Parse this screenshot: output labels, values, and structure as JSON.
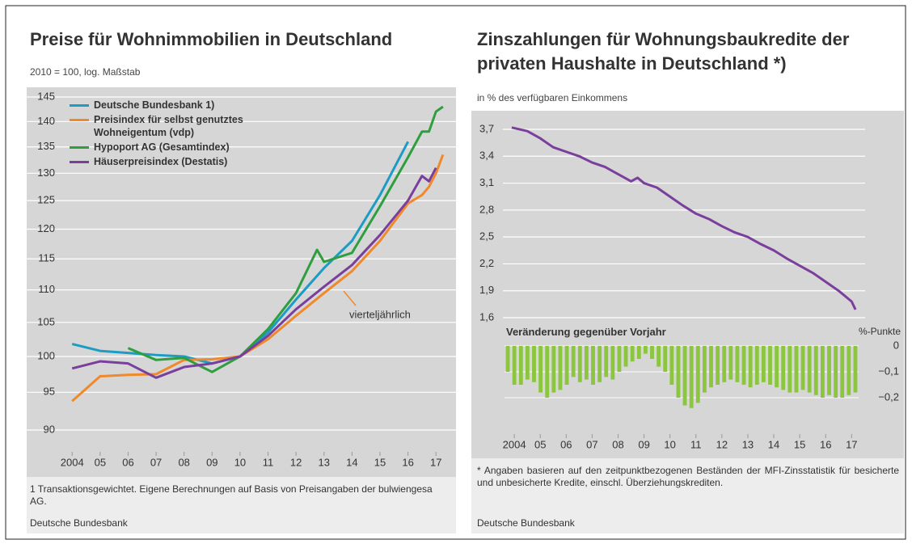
{
  "chart_data": [
    {
      "type": "line",
      "title": "Preise für Wohnimmobilien in Deutschland",
      "subtitle": "2010 = 100, log. Maßstab",
      "log_y": true,
      "grid": true,
      "ylim": [
        90,
        145
      ],
      "yticks": [
        90,
        95,
        100,
        105,
        110,
        115,
        120,
        125,
        130,
        135,
        140,
        145
      ],
      "xlim": [
        2003.3,
        2017.6
      ],
      "xticks": [
        {
          "value": 2004,
          "label": "2004"
        },
        {
          "value": 2005,
          "label": "05"
        },
        {
          "value": 2006,
          "label": "06"
        },
        {
          "value": 2007,
          "label": "07"
        },
        {
          "value": 2008,
          "label": "08"
        },
        {
          "value": 2009,
          "label": "09"
        },
        {
          "value": 2010,
          "label": "10"
        },
        {
          "value": 2011,
          "label": "11"
        },
        {
          "value": 2012,
          "label": "12"
        },
        {
          "value": 2013,
          "label": "13"
        },
        {
          "value": 2014,
          "label": "14"
        },
        {
          "value": 2015,
          "label": "15"
        },
        {
          "value": 2016,
          "label": "16"
        },
        {
          "value": 2017,
          "label": "17"
        }
      ],
      "series": [
        {
          "name": "Deutsche Bundesbank 1)",
          "color": "#1c9cc4",
          "x": [
            2004,
            2005,
            2006,
            2007,
            2008,
            2009,
            2010,
            2011,
            2012,
            2013,
            2014,
            2015,
            2016
          ],
          "values": [
            101.8,
            100.8,
            100.5,
            100.2,
            100.0,
            99.0,
            100,
            103.5,
            108.5,
            113.5,
            118,
            126,
            136
          ]
        },
        {
          "name": "Preisindex für selbst genutztes Wohneigentum (vdp)",
          "color": "#f0892a",
          "x": [
            2004,
            2005,
            2006,
            2007,
            2008,
            2009,
            2010,
            2011,
            2012,
            2013,
            2014,
            2015,
            2016,
            2016.5,
            2016.75,
            2017,
            2017.25
          ],
          "values": [
            93.8,
            97.2,
            97.4,
            97.5,
            99.5,
            99.6,
            100,
            102.5,
            106,
            109.5,
            113,
            118,
            124.5,
            126,
            127.5,
            130,
            133.5
          ]
        },
        {
          "name": "Hypoport AG (Gesamtindex)",
          "color": "#2e9e3e",
          "x": [
            2006,
            2007,
            2008,
            2009,
            2010,
            2011,
            2012,
            2012.75,
            2013,
            2014,
            2015,
            2016,
            2016.5,
            2016.75,
            2017,
            2017.25
          ],
          "values": [
            101.2,
            99.5,
            99.8,
            97.8,
            100,
            104,
            109.5,
            116.5,
            114.5,
            116,
            124,
            133,
            138,
            138,
            142,
            143
          ]
        },
        {
          "name": "Häuserpreisindex (Destatis)",
          "color": "#7a3f9c",
          "x": [
            2004,
            2005,
            2006,
            2007,
            2008,
            2009,
            2010,
            2011,
            2012,
            2013,
            2014,
            2015,
            2016,
            2016.5,
            2016.75,
            2017
          ],
          "values": [
            98.3,
            99.3,
            99.0,
            97.0,
            98.5,
            99.0,
            100,
            103,
            107,
            110.5,
            114,
            119,
            125,
            129.5,
            128.5,
            131
          ]
        }
      ],
      "annotation": "vierteljährlich",
      "footnote": "1 Transaktionsgewichtet. Eigene Berechnungen auf Basis von Preisangaben der bulwiengesa AG.",
      "source": "Deutsche Bundesbank"
    },
    {
      "type": "line",
      "title": "Zinszahlungen für Wohnungsbaukredite der privaten Haushalte in Deutschland *)",
      "subtitle": "in % des verfügbaren Einkommens",
      "grid": true,
      "ylim": [
        1.6,
        3.7
      ],
      "yticks": [
        {
          "value": 1.6,
          "label": "1,6"
        },
        {
          "value": 1.9,
          "label": "1,9"
        },
        {
          "value": 2.2,
          "label": "2,2"
        },
        {
          "value": 2.5,
          "label": "2,5"
        },
        {
          "value": 2.8,
          "label": "2,8"
        },
        {
          "value": 3.1,
          "label": "3,1"
        },
        {
          "value": 3.4,
          "label": "3,4"
        },
        {
          "value": 3.7,
          "label": "3,7"
        }
      ],
      "xlim": [
        2003.56,
        2017.52
      ],
      "xticks": [
        {
          "value": 2004,
          "label": "2004"
        },
        {
          "value": 2005,
          "label": "05"
        },
        {
          "value": 2006,
          "label": "06"
        },
        {
          "value": 2007,
          "label": "07"
        },
        {
          "value": 2008,
          "label": "08"
        },
        {
          "value": 2009,
          "label": "09"
        },
        {
          "value": 2010,
          "label": "10"
        },
        {
          "value": 2011,
          "label": "11"
        },
        {
          "value": 2012,
          "label": "12"
        },
        {
          "value": 2013,
          "label": "13"
        },
        {
          "value": 2014,
          "label": "14"
        },
        {
          "value": 2015,
          "label": "15"
        },
        {
          "value": 2016,
          "label": "16"
        },
        {
          "value": 2017,
          "label": "17"
        }
      ],
      "series": [
        {
          "color": "#7a3f9c",
          "x": [
            2003.9,
            2004.5,
            2005,
            2005.5,
            2006,
            2006.5,
            2007,
            2007.5,
            2008,
            2008.5,
            2008.75,
            2009,
            2009.5,
            2010,
            2010.5,
            2011,
            2011.5,
            2012,
            2012.5,
            2013,
            2013.5,
            2014,
            2014.5,
            2015,
            2015.5,
            2016,
            2016.5,
            2017,
            2017.15
          ],
          "values": [
            3.72,
            3.68,
            3.6,
            3.5,
            3.45,
            3.4,
            3.33,
            3.28,
            3.2,
            3.12,
            3.16,
            3.1,
            3.05,
            2.95,
            2.85,
            2.76,
            2.7,
            2.62,
            2.55,
            2.5,
            2.42,
            2.35,
            2.26,
            2.18,
            2.1,
            2.0,
            1.9,
            1.78,
            1.69
          ]
        }
      ],
      "footnote": "* Angaben basieren auf den zeitpunktbezogenen Beständen der MFI-Zinsstatistik für besicherte und unbesicherte Kredite, einschl. Überziehungskrediten.",
      "source": "Deutsche Bundesbank"
    },
    {
      "type": "bar",
      "title": "Veränderung gegenüber Vorjahr",
      "y_label": "%-Punkte",
      "color": "#8cc63f",
      "ylim": [
        -0.25,
        0
      ],
      "yticks": [
        0,
        {
          "value": -0.1,
          "label": "−0,1"
        },
        {
          "value": -0.2,
          "label": "−0,2"
        }
      ],
      "categories": [
        null,
        null,
        null,
        null,
        null,
        null,
        null,
        null,
        null,
        null,
        null,
        null,
        null,
        null,
        null,
        null,
        null,
        null,
        null,
        null,
        null,
        null,
        null,
        null,
        null,
        null,
        null,
        null,
        null,
        null,
        null,
        null,
        null,
        null,
        null,
        null,
        null,
        null,
        null,
        null,
        null,
        null,
        null,
        null,
        null,
        null,
        null,
        null,
        null,
        null,
        null,
        null,
        null,
        null
      ],
      "values": [
        -0.1,
        -0.15,
        -0.15,
        -0.13,
        -0.14,
        -0.18,
        -0.2,
        -0.18,
        -0.17,
        -0.15,
        -0.12,
        -0.14,
        -0.13,
        -0.15,
        -0.14,
        -0.12,
        -0.13,
        -0.1,
        -0.08,
        -0.06,
        -0.05,
        -0.03,
        -0.05,
        -0.08,
        -0.1,
        -0.15,
        -0.2,
        -0.23,
        -0.24,
        -0.22,
        -0.18,
        -0.16,
        -0.15,
        -0.14,
        -0.13,
        -0.14,
        -0.15,
        -0.16,
        -0.15,
        -0.14,
        -0.15,
        -0.16,
        -0.17,
        -0.18,
        -0.18,
        -0.17,
        -0.18,
        -0.19,
        -0.2,
        -0.19,
        -0.2,
        -0.2,
        -0.19,
        -0.18
      ]
    }
  ]
}
